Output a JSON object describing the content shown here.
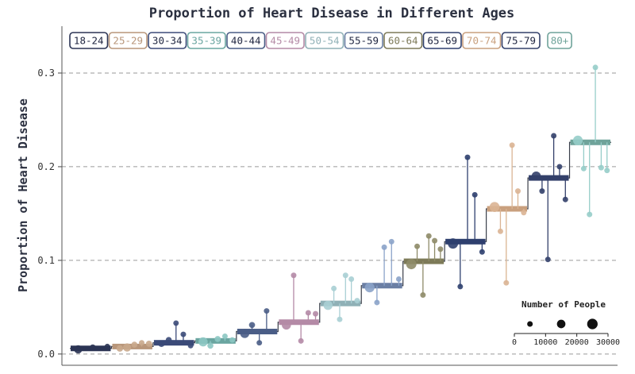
{
  "chart_data": {
    "type": "step",
    "title": "Proportion of Heart Disease in Different Ages",
    "xlabel": "",
    "ylabel": "Proportion of Heart Disease",
    "ylim": [
      -0.012,
      0.35
    ],
    "yticks": [
      0.0,
      0.1,
      0.2,
      0.3
    ],
    "ytick_labels": [
      "0.0",
      "0.1",
      "0.2",
      "0.3"
    ],
    "grid": "horizontal-dashed",
    "legend_position": "top",
    "categories": [
      "18-24",
      "25-29",
      "30-34",
      "35-39",
      "40-44",
      "45-49",
      "50-54",
      "55-59",
      "60-64",
      "65-69",
      "70-74",
      "75-79",
      "80+"
    ],
    "colors": [
      "#2b3454",
      "#b8967a",
      "#3b4a78",
      "#6aa5a0",
      "#4a5d86",
      "#b48aa6",
      "#8fb0b6",
      "#6b7fa4",
      "#7d7a58",
      "#2e3f6e",
      "#c9a07e",
      "#33406a",
      "#6fa39a"
    ],
    "point_colors": [
      "#2b3454",
      "#c9a88c",
      "#3b4a78",
      "#8cc6c2",
      "#4a5d86",
      "#b48aa6",
      "#a9cfd4",
      "#8ba3c9",
      "#8e8b68",
      "#2e3f6e",
      "#dab493",
      "#33406a",
      "#96cdc9"
    ],
    "values": [
      0.006,
      0.008,
      0.012,
      0.014,
      0.024,
      0.034,
      0.054,
      0.073,
      0.099,
      0.12,
      0.155,
      0.188,
      0.226
    ],
    "points": [
      [
        {
          "y": 0.005,
          "n": 9000
        },
        {
          "y": 0.007,
          "n": 4000
        },
        {
          "y": 0.008,
          "n": 3000
        }
      ],
      [
        {
          "y": 0.006,
          "n": 5000
        },
        {
          "y": 0.007,
          "n": 9000
        },
        {
          "y": 0.01,
          "n": 4000
        },
        {
          "y": 0.012,
          "n": 3000
        },
        {
          "y": 0.011,
          "n": 4000
        }
      ],
      [
        {
          "y": 0.011,
          "n": 5000
        },
        {
          "y": 0.015,
          "n": 4000
        },
        {
          "y": 0.033,
          "n": 3000
        },
        {
          "y": 0.021,
          "n": 3000
        },
        {
          "y": 0.009,
          "n": 3000
        }
      ],
      [
        {
          "y": 0.013,
          "n": 12000
        },
        {
          "y": 0.009,
          "n": 4000
        },
        {
          "y": 0.016,
          "n": 4000
        },
        {
          "y": 0.019,
          "n": 3000
        },
        {
          "y": 0.015,
          "n": 3000
        }
      ],
      [
        {
          "y": 0.022,
          "n": 12000
        },
        {
          "y": 0.031,
          "n": 4000
        },
        {
          "y": 0.012,
          "n": 3000
        },
        {
          "y": 0.046,
          "n": 3000
        },
        {
          "y": 0.024,
          "n": 3000
        }
      ],
      [
        {
          "y": 0.031,
          "n": 12000
        },
        {
          "y": 0.084,
          "n": 3000
        },
        {
          "y": 0.014,
          "n": 3000
        },
        {
          "y": 0.044,
          "n": 3000
        },
        {
          "y": 0.043,
          "n": 3000
        }
      ],
      [
        {
          "y": 0.052,
          "n": 12000
        },
        {
          "y": 0.07,
          "n": 3000
        },
        {
          "y": 0.037,
          "n": 3000
        },
        {
          "y": 0.084,
          "n": 3000
        },
        {
          "y": 0.08,
          "n": 3000
        },
        {
          "y": 0.057,
          "n": 3000
        }
      ],
      [
        {
          "y": 0.071,
          "n": 14000
        },
        {
          "y": 0.055,
          "n": 3000
        },
        {
          "y": 0.114,
          "n": 3000
        },
        {
          "y": 0.12,
          "n": 3000
        },
        {
          "y": 0.08,
          "n": 3000
        }
      ],
      [
        {
          "y": 0.096,
          "n": 16000
        },
        {
          "y": 0.115,
          "n": 3000
        },
        {
          "y": 0.063,
          "n": 3000
        },
        {
          "y": 0.126,
          "n": 3000
        },
        {
          "y": 0.121,
          "n": 3000
        },
        {
          "y": 0.112,
          "n": 3000
        }
      ],
      [
        {
          "y": 0.118,
          "n": 16000
        },
        {
          "y": 0.072,
          "n": 3000
        },
        {
          "y": 0.21,
          "n": 3000
        },
        {
          "y": 0.17,
          "n": 3000
        },
        {
          "y": 0.109,
          "n": 3000
        }
      ],
      [
        {
          "y": 0.157,
          "n": 15000
        },
        {
          "y": 0.131,
          "n": 3000
        },
        {
          "y": 0.076,
          "n": 3000
        },
        {
          "y": 0.223,
          "n": 3000
        },
        {
          "y": 0.174,
          "n": 3000
        },
        {
          "y": 0.151,
          "n": 3000
        }
      ],
      [
        {
          "y": 0.19,
          "n": 12000
        },
        {
          "y": 0.174,
          "n": 3000
        },
        {
          "y": 0.101,
          "n": 3000
        },
        {
          "y": 0.233,
          "n": 3000
        },
        {
          "y": 0.2,
          "n": 3000
        },
        {
          "y": 0.165,
          "n": 3000
        }
      ],
      [
        {
          "y": 0.228,
          "n": 14000
        },
        {
          "y": 0.198,
          "n": 3000
        },
        {
          "y": 0.149,
          "n": 3000
        },
        {
          "y": 0.306,
          "n": 3000
        },
        {
          "y": 0.199,
          "n": 3000
        },
        {
          "y": 0.196,
          "n": 3000
        }
      ]
    ],
    "size_legend": {
      "title": "Number of People",
      "ticks": [
        0,
        10000,
        20000,
        30000
      ],
      "tick_labels": [
        "0",
        "10000",
        "20000",
        "30000"
      ],
      "example_sizes": [
        5000,
        15000,
        25000
      ]
    }
  }
}
